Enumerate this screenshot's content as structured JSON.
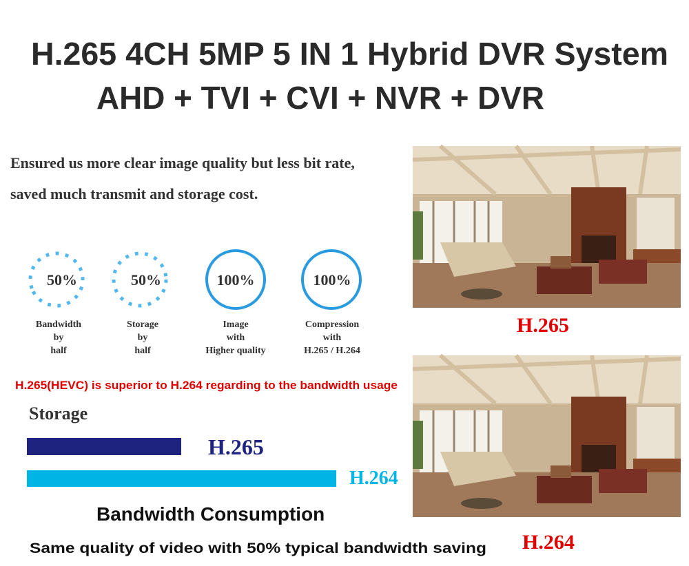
{
  "header": {
    "title": "H.265 4CH 5MP 5 IN 1 Hybrid DVR System",
    "subtitle": "AHD + TVI + CVI + NVR + DVR"
  },
  "intro": {
    "lines": [
      "Ensured us more clear image quality but less bit rate,",
      "saved much transmit and storage cost."
    ]
  },
  "features": [
    {
      "value": "50%",
      "label": [
        "Bandwidth",
        "by",
        "half"
      ]
    },
    {
      "value": "50%",
      "label": [
        "Storage",
        "by",
        "half"
      ]
    },
    {
      "value": "100%",
      "label": [
        "Image",
        "with",
        "Higher quality"
      ]
    },
    {
      "value": "100%",
      "label": [
        "Compression",
        "with",
        "H.265 / H.264"
      ]
    }
  ],
  "note": "H.265(HEVC) is superior to H.264 regarding to the bandwidth usage",
  "storage": {
    "title": "Storage",
    "bars": [
      {
        "label": "H.265"
      },
      {
        "label": "H.264"
      }
    ]
  },
  "bandwidth_title": "Bandwidth Consumption",
  "tagline": "Same quality of video with 50% typical bandwidth saving",
  "images": [
    {
      "caption": "H.265"
    },
    {
      "caption": "H.264"
    }
  ]
}
